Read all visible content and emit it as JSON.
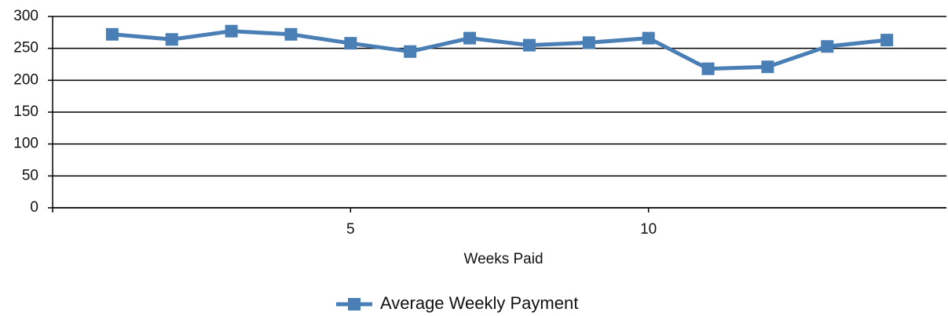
{
  "chart_data": {
    "type": "line",
    "x_label": "Weeks Paid",
    "x": [
      1,
      2,
      3,
      4,
      5,
      6,
      7,
      8,
      9,
      10,
      11,
      12,
      13,
      14
    ],
    "series": [
      {
        "name": "Average Weekly Payment",
        "color": "#4a7fb5",
        "values": [
          272,
          264,
          277,
          272,
          258,
          245,
          266,
          255,
          259,
          266,
          218,
          221,
          253,
          263
        ]
      }
    ],
    "xlim": [
      0,
      15
    ],
    "xticks": [
      5,
      10
    ],
    "ylim": [
      0,
      300
    ],
    "yticks": [
      0,
      50,
      100,
      150,
      200,
      250,
      300
    ],
    "grid": true,
    "legend": "bottom"
  }
}
